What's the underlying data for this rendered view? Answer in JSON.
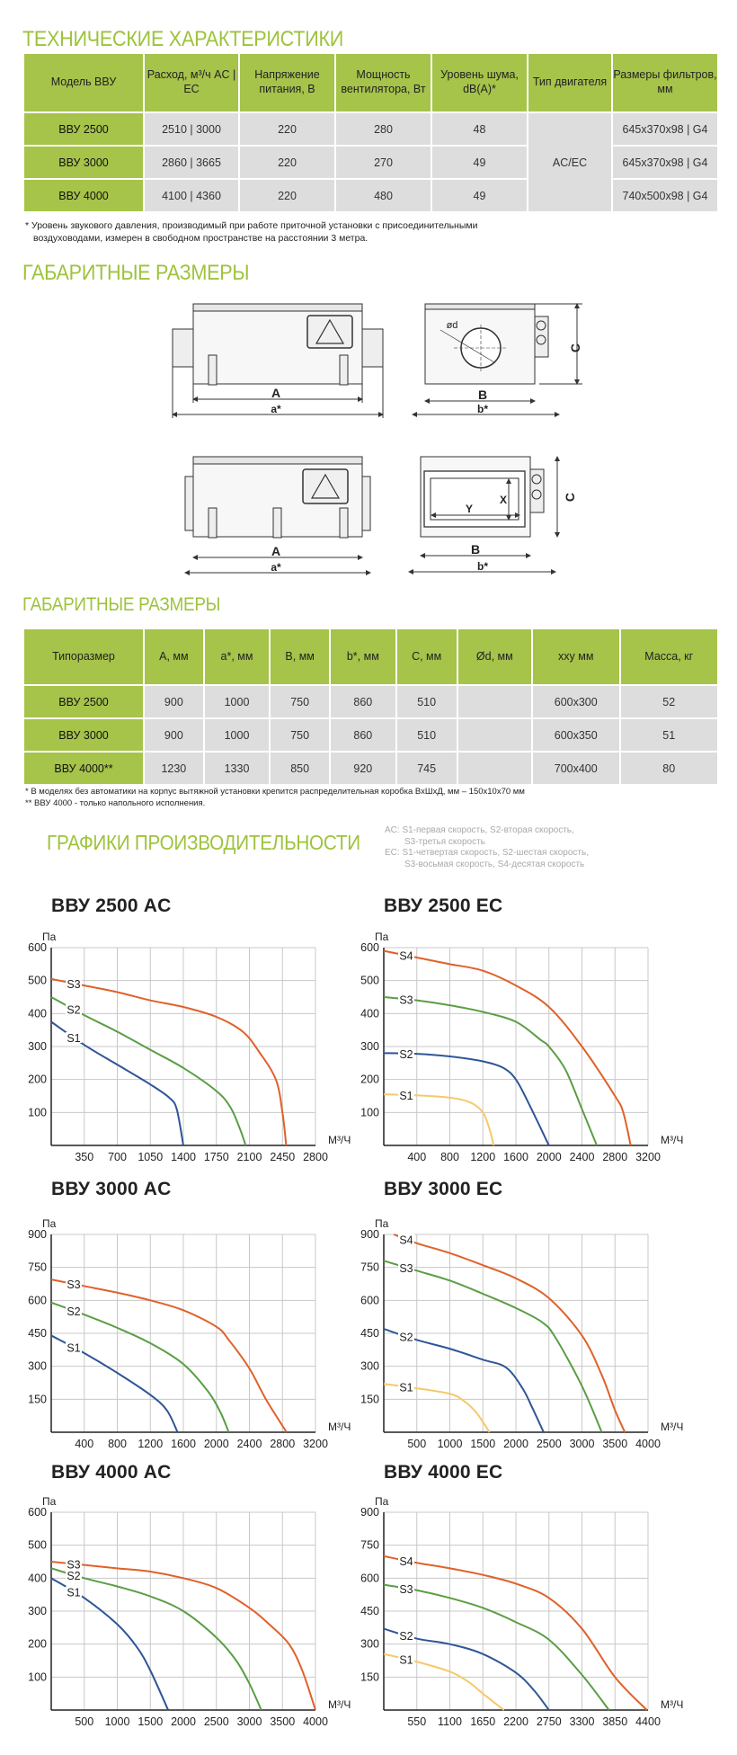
{
  "specs": {
    "title": "ТЕХНИЧЕСКИЕ ХАРАКТЕРИСТИКИ",
    "headers": [
      "Модель ВВУ",
      "Расход, м³/ч AC | EC",
      "Напряжение питания, В",
      "Мощность вентилятора, Вт",
      "Уровень шума, dB(A)*",
      "Тип двигателя",
      "Размеры фильтров, мм"
    ],
    "rows": [
      {
        "model": "ВВУ 2500",
        "flow": "2510 | 3000",
        "voltage": "220",
        "power": "280",
        "noise": "48",
        "filter": "645x370x98 | G4"
      },
      {
        "model": "ВВУ 3000",
        "flow": "2860 | 3665",
        "voltage": "220",
        "power": "270",
        "noise": "49",
        "filter": "645x370x98 | G4"
      },
      {
        "model": "ВВУ 4000",
        "flow": "4100 | 4360",
        "voltage": "220",
        "power": "480",
        "noise": "49",
        "filter": "740x500x98 | G4"
      }
    ],
    "motor_type": "AC/EC",
    "footnote_1": "*  Уровень звукового давления, производимый при работе приточной установки с присоединительными",
    "footnote_2": "воздуховодами, измерен в свободном пространстве на расстоянии 3 метра."
  },
  "drawings": {
    "title": "ГАБАРИТНЫЕ РАЗМЕРЫ",
    "labels": {
      "A": "A",
      "a": "a*",
      "B": "B",
      "b": "b*",
      "C": "C",
      "d": "ød",
      "X": "X",
      "Y": "Y"
    }
  },
  "dims": {
    "title": "ГАБАРИТНЫЕ РАЗМЕРЫ",
    "headers": [
      "Типоразмер",
      "A, мм",
      "a*, мм",
      "B, мм",
      "b*, мм",
      "C, мм",
      "Ød, мм",
      "xxy мм",
      "Масса, кг"
    ],
    "rows": [
      [
        "ВВУ 2500",
        "900",
        "1000",
        "750",
        "860",
        "510",
        "",
        "600x300",
        "52"
      ],
      [
        "ВВУ 3000",
        "900",
        "1000",
        "750",
        "860",
        "510",
        "",
        "600x350",
        "51"
      ],
      [
        "ВВУ 4000**",
        "1230",
        "1330",
        "850",
        "920",
        "745",
        "",
        "700x400",
        "80"
      ]
    ],
    "footnote_1": "*   В моделях без автоматики на корпус вытяжной установки крепится распределительная коробка ВхШхД, мм – 150х10х70 мм",
    "footnote_2": "** ВВУ 4000 - только напольного исполнения."
  },
  "performance": {
    "title": "ГРАФИКИ ПРОИЗВОДИТЕЛЬНОСТИ",
    "legend": [
      "AC: S1-первая скорость, S2-вторая скорость,",
      "S3-третья скорость",
      "EC:  S1-четвертая скорость, S2-шестая скорость,",
      "S3-восьмая скорость, S4-десятая скорость"
    ]
  },
  "colors": {
    "accent": "#9dc33b",
    "header_bg": "#a6c34a",
    "cell_bg": "#dddddd",
    "S1_AC": "#2f5597",
    "S2_AC": "#5a9e45",
    "S3_AC": "#e0612a",
    "S1_EC": "#f5c96a"
  },
  "chart_data": [
    {
      "type": "line",
      "title": "ВВУ 2500 AC",
      "ylabel": "Па",
      "xlabel": "М³/Ч",
      "xlim": [
        0,
        2800
      ],
      "ylim": [
        0,
        600
      ],
      "xticks": [
        350,
        700,
        1050,
        1400,
        1750,
        2100,
        2450,
        2800
      ],
      "yticks": [
        100,
        200,
        300,
        400,
        500,
        600
      ],
      "grid": true,
      "series": [
        {
          "name": "S1",
          "color": "#2f5597",
          "points": [
            [
              0,
              375
            ],
            [
              350,
              305
            ],
            [
              700,
              245
            ],
            [
              1050,
              185
            ],
            [
              1250,
              145
            ],
            [
              1330,
              110
            ],
            [
              1400,
              0
            ]
          ]
        },
        {
          "name": "S2",
          "color": "#5a9e45",
          "points": [
            [
              0,
              450
            ],
            [
              350,
              395
            ],
            [
              700,
              345
            ],
            [
              1050,
              290
            ],
            [
              1400,
              235
            ],
            [
              1750,
              165
            ],
            [
              1900,
              115
            ],
            [
              2000,
              50
            ],
            [
              2060,
              0
            ]
          ]
        },
        {
          "name": "S3",
          "color": "#e0612a",
          "points": [
            [
              0,
              505
            ],
            [
              350,
              485
            ],
            [
              700,
              465
            ],
            [
              1050,
              440
            ],
            [
              1400,
              420
            ],
            [
              1750,
              390
            ],
            [
              2030,
              345
            ],
            [
              2200,
              285
            ],
            [
              2380,
              200
            ],
            [
              2450,
              100
            ],
            [
              2490,
              0
            ]
          ]
        }
      ]
    },
    {
      "type": "line",
      "title": "ВВУ 2500 EC",
      "ylabel": "Па",
      "xlabel": "М³/Ч",
      "xlim": [
        0,
        3200
      ],
      "ylim": [
        0,
        600
      ],
      "xticks": [
        400,
        800,
        1200,
        1600,
        2000,
        2400,
        2800,
        3200
      ],
      "yticks": [
        100,
        200,
        300,
        400,
        500,
        600
      ],
      "grid": true,
      "series": [
        {
          "name": "S1",
          "color": "#f5c96a",
          "points": [
            [
              0,
              155
            ],
            [
              400,
              152
            ],
            [
              800,
              145
            ],
            [
              1050,
              130
            ],
            [
              1200,
              100
            ],
            [
              1280,
              50
            ],
            [
              1330,
              0
            ]
          ]
        },
        {
          "name": "S2",
          "color": "#2f5597",
          "points": [
            [
              0,
              280
            ],
            [
              400,
              278
            ],
            [
              800,
              270
            ],
            [
              1200,
              255
            ],
            [
              1450,
              235
            ],
            [
              1600,
              200
            ],
            [
              1750,
              130
            ],
            [
              2000,
              0
            ]
          ]
        },
        {
          "name": "S3",
          "color": "#5a9e45",
          "points": [
            [
              0,
              450
            ],
            [
              400,
              440
            ],
            [
              800,
              425
            ],
            [
              1200,
              405
            ],
            [
              1600,
              375
            ],
            [
              1900,
              320
            ],
            [
              2000,
              300
            ],
            [
              2200,
              230
            ],
            [
              2400,
              110
            ],
            [
              2580,
              0
            ]
          ]
        },
        {
          "name": "S4",
          "color": "#e0612a",
          "points": [
            [
              0,
              590
            ],
            [
              400,
              570
            ],
            [
              800,
              550
            ],
            [
              1200,
              530
            ],
            [
              1600,
              485
            ],
            [
              2000,
              420
            ],
            [
              2400,
              300
            ],
            [
              2800,
              150
            ],
            [
              2900,
              100
            ],
            [
              2990,
              0
            ]
          ]
        }
      ]
    },
    {
      "type": "line",
      "title": "ВВУ 3000 AC",
      "ylabel": "Па",
      "xlabel": "М³/Ч",
      "xlim": [
        0,
        3200
      ],
      "ylim": [
        0,
        900
      ],
      "xticks": [
        400,
        800,
        1200,
        1600,
        2000,
        2400,
        2800,
        3200
      ],
      "yticks": [
        150,
        300,
        450,
        600,
        750,
        900
      ],
      "grid": true,
      "series": [
        {
          "name": "S1",
          "color": "#2f5597",
          "points": [
            [
              0,
              440
            ],
            [
              400,
              360
            ],
            [
              800,
              270
            ],
            [
              1200,
              170
            ],
            [
              1400,
              100
            ],
            [
              1530,
              0
            ]
          ]
        },
        {
          "name": "S2",
          "color": "#5a9e45",
          "points": [
            [
              0,
              590
            ],
            [
              400,
              535
            ],
            [
              800,
              475
            ],
            [
              1200,
              405
            ],
            [
              1600,
              310
            ],
            [
              1900,
              185
            ],
            [
              2050,
              90
            ],
            [
              2150,
              0
            ]
          ]
        },
        {
          "name": "S3",
          "color": "#e0612a",
          "points": [
            [
              0,
              695
            ],
            [
              400,
              665
            ],
            [
              800,
              635
            ],
            [
              1200,
              600
            ],
            [
              1600,
              555
            ],
            [
              2000,
              480
            ],
            [
              2150,
              420
            ],
            [
              2400,
              290
            ],
            [
              2600,
              150
            ],
            [
              2850,
              0
            ]
          ]
        }
      ]
    },
    {
      "type": "line",
      "title": "ВВУ 3000 EC",
      "ylabel": "Па",
      "xlabel": "М³/Ч",
      "xlim": [
        0,
        4000
      ],
      "ylim": [
        0,
        900
      ],
      "xticks": [
        500,
        1000,
        1500,
        2000,
        2500,
        3000,
        3500,
        4000
      ],
      "yticks": [
        150,
        300,
        450,
        600,
        750,
        900
      ],
      "grid": true,
      "series": [
        {
          "name": "S1",
          "color": "#f5c96a",
          "points": [
            [
              0,
              220
            ],
            [
              500,
              200
            ],
            [
              1000,
              175
            ],
            [
              1200,
              145
            ],
            [
              1400,
              90
            ],
            [
              1600,
              0
            ]
          ]
        },
        {
          "name": "S2",
          "color": "#2f5597",
          "points": [
            [
              0,
              470
            ],
            [
              500,
              420
            ],
            [
              1000,
              380
            ],
            [
              1500,
              330
            ],
            [
              1850,
              295
            ],
            [
              2100,
              200
            ],
            [
              2250,
              110
            ],
            [
              2420,
              0
            ]
          ]
        },
        {
          "name": "S3",
          "color": "#5a9e45",
          "points": [
            [
              0,
              780
            ],
            [
              500,
              735
            ],
            [
              1000,
              690
            ],
            [
              1500,
              630
            ],
            [
              2000,
              565
            ],
            [
              2400,
              500
            ],
            [
              2600,
              430
            ],
            [
              3000,
              210
            ],
            [
              3300,
              0
            ]
          ]
        },
        {
          "name": "S4",
          "color": "#e0612a",
          "points": [
            [
              150,
              900
            ],
            [
              500,
              860
            ],
            [
              1000,
              815
            ],
            [
              1500,
              760
            ],
            [
              2000,
              700
            ],
            [
              2500,
              610
            ],
            [
              3000,
              440
            ],
            [
              3300,
              260
            ],
            [
              3500,
              100
            ],
            [
              3650,
              0
            ]
          ]
        }
      ]
    },
    {
      "type": "line",
      "title": "ВВУ 4000 AC",
      "ylabel": "Па",
      "xlabel": "М³/Ч",
      "xlim": [
        0,
        4000
      ],
      "ylim": [
        0,
        600
      ],
      "xticks": [
        500,
        1000,
        1500,
        2000,
        2500,
        3000,
        3500,
        4000
      ],
      "yticks": [
        100,
        200,
        300,
        400,
        500,
        600
      ],
      "grid": true,
      "series": [
        {
          "name": "S1",
          "color": "#2f5597",
          "points": [
            [
              0,
              400
            ],
            [
              500,
              340
            ],
            [
              1000,
              260
            ],
            [
              1300,
              190
            ],
            [
              1500,
              120
            ],
            [
              1770,
              0
            ]
          ]
        },
        {
          "name": "S2",
          "color": "#5a9e45",
          "points": [
            [
              0,
              430
            ],
            [
              500,
              400
            ],
            [
              1000,
              375
            ],
            [
              1500,
              345
            ],
            [
              2000,
              300
            ],
            [
              2500,
              220
            ],
            [
              2800,
              150
            ],
            [
              3000,
              80
            ],
            [
              3180,
              0
            ]
          ]
        },
        {
          "name": "S3",
          "color": "#e0612a",
          "points": [
            [
              0,
              450
            ],
            [
              500,
              440
            ],
            [
              1000,
              430
            ],
            [
              1500,
              420
            ],
            [
              2000,
              400
            ],
            [
              2500,
              370
            ],
            [
              3000,
              310
            ],
            [
              3300,
              260
            ],
            [
              3600,
              200
            ],
            [
              3800,
              120
            ],
            [
              4000,
              0
            ]
          ]
        }
      ]
    },
    {
      "type": "line",
      "title": "ВВУ 4000 EC",
      "ylabel": "Па",
      "xlabel": "М³/Ч",
      "xlim": [
        0,
        4400
      ],
      "ylim": [
        0,
        900
      ],
      "xticks": [
        550,
        1100,
        1650,
        2200,
        2750,
        3300,
        3850,
        4400
      ],
      "yticks": [
        150,
        300,
        450,
        600,
        750,
        900
      ],
      "grid": true,
      "series": [
        {
          "name": "S1",
          "color": "#f5c96a",
          "points": [
            [
              0,
              255
            ],
            [
              550,
              220
            ],
            [
              1100,
              175
            ],
            [
              1400,
              130
            ],
            [
              1650,
              75
            ],
            [
              2000,
              0
            ]
          ]
        },
        {
          "name": "S2",
          "color": "#2f5597",
          "points": [
            [
              0,
              370
            ],
            [
              550,
              325
            ],
            [
              1100,
              300
            ],
            [
              1650,
              255
            ],
            [
              2200,
              170
            ],
            [
              2500,
              90
            ],
            [
              2750,
              0
            ]
          ]
        },
        {
          "name": "S3",
          "color": "#5a9e45",
          "points": [
            [
              0,
              570
            ],
            [
              550,
              545
            ],
            [
              1100,
              510
            ],
            [
              1650,
              465
            ],
            [
              2200,
              400
            ],
            [
              2750,
              320
            ],
            [
              3300,
              160
            ],
            [
              3750,
              0
            ]
          ]
        },
        {
          "name": "S4",
          "color": "#e0612a",
          "points": [
            [
              0,
              700
            ],
            [
              550,
              670
            ],
            [
              1100,
              645
            ],
            [
              1650,
              615
            ],
            [
              2200,
              575
            ],
            [
              2750,
              510
            ],
            [
              3300,
              370
            ],
            [
              3850,
              150
            ],
            [
              4380,
              0
            ]
          ]
        }
      ]
    }
  ]
}
